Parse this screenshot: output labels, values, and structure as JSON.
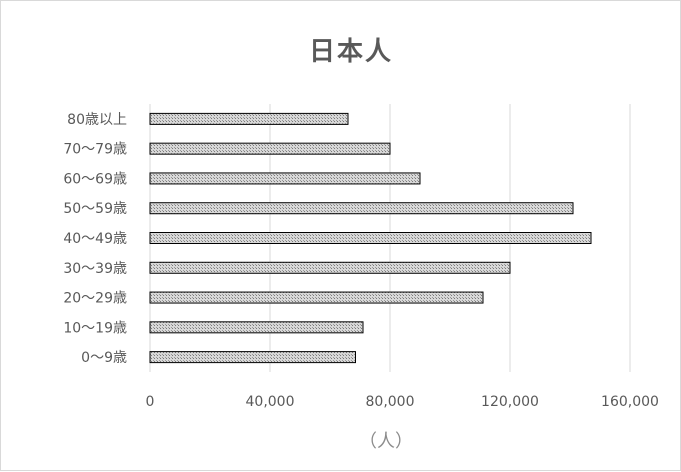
{
  "chart_data": {
    "type": "bar",
    "orientation": "horizontal",
    "title": "日本人",
    "xlabel": "（人）",
    "ylabel": "",
    "categories": [
      "80歳以上",
      "70～79歳",
      "60～69歳",
      "50～59歳",
      "40～49歳",
      "30～39歳",
      "20～29歳",
      "10～19歳",
      "0～9歳"
    ],
    "values": [
      66000,
      80000,
      90000,
      141000,
      147000,
      120000,
      111000,
      71000,
      68500
    ],
    "xlim": [
      0,
      160000
    ],
    "xticks": [
      "0",
      "40,000",
      "80,000",
      "120,000",
      "160,000"
    ],
    "grid": true,
    "legend": "none",
    "bar_fill": "#c8c8c8",
    "bar_stroke": "#000000",
    "grid_color": "#d9d9d9",
    "text_color": "#595959"
  }
}
